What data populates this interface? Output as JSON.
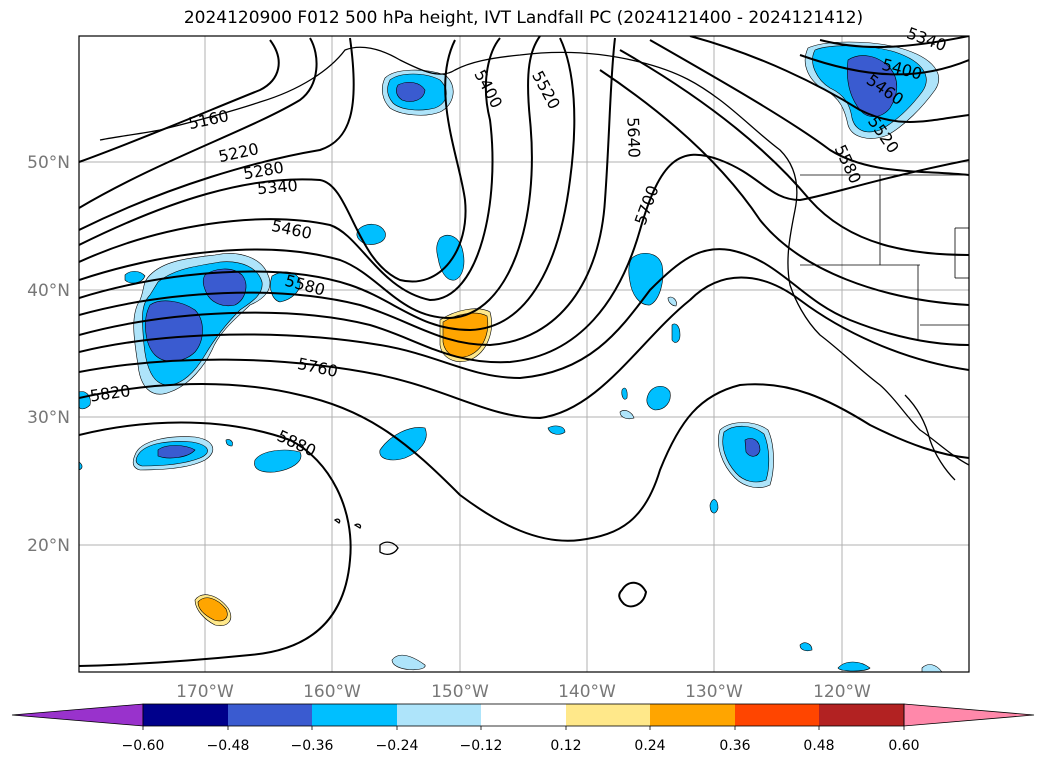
{
  "title": "2024120900 F012 500 hPa height, IVT Landfall PC (2024121400 - 2024121412)",
  "longitude_labels": [
    "170°W",
    "160°W",
    "150°W",
    "140°W",
    "130°W",
    "120°W"
  ],
  "latitude_labels": [
    "50°N",
    "40°N",
    "30°N",
    "20°N"
  ],
  "contour_labels": [
    "5160",
    "5220",
    "5280",
    "5340",
    "5400",
    "5460",
    "5520",
    "5580",
    "5640",
    "5700",
    "5760",
    "5820",
    "5880",
    "5340",
    "5400",
    "5460",
    "5520",
    "5580"
  ],
  "colorbar": {
    "tick_labels": [
      "−0.60",
      "−0.48",
      "−0.36",
      "−0.24",
      "−0.12",
      "0.12",
      "0.24",
      "0.36",
      "0.48",
      "0.60"
    ],
    "colors": [
      "#9932cc",
      "#00008b",
      "#3a5bd0",
      "#00bfff",
      "#aee4fa",
      "#ffffff",
      "#ffe88a",
      "#ffa500",
      "#ff4500",
      "#b22222",
      "#ff88aa"
    ]
  },
  "field_colors": {
    "dark": "#3a5bd0",
    "mid": "#00bfff",
    "light": "#aee4fa",
    "orange": "#ffa500",
    "yellow": "#ffe88a"
  }
}
